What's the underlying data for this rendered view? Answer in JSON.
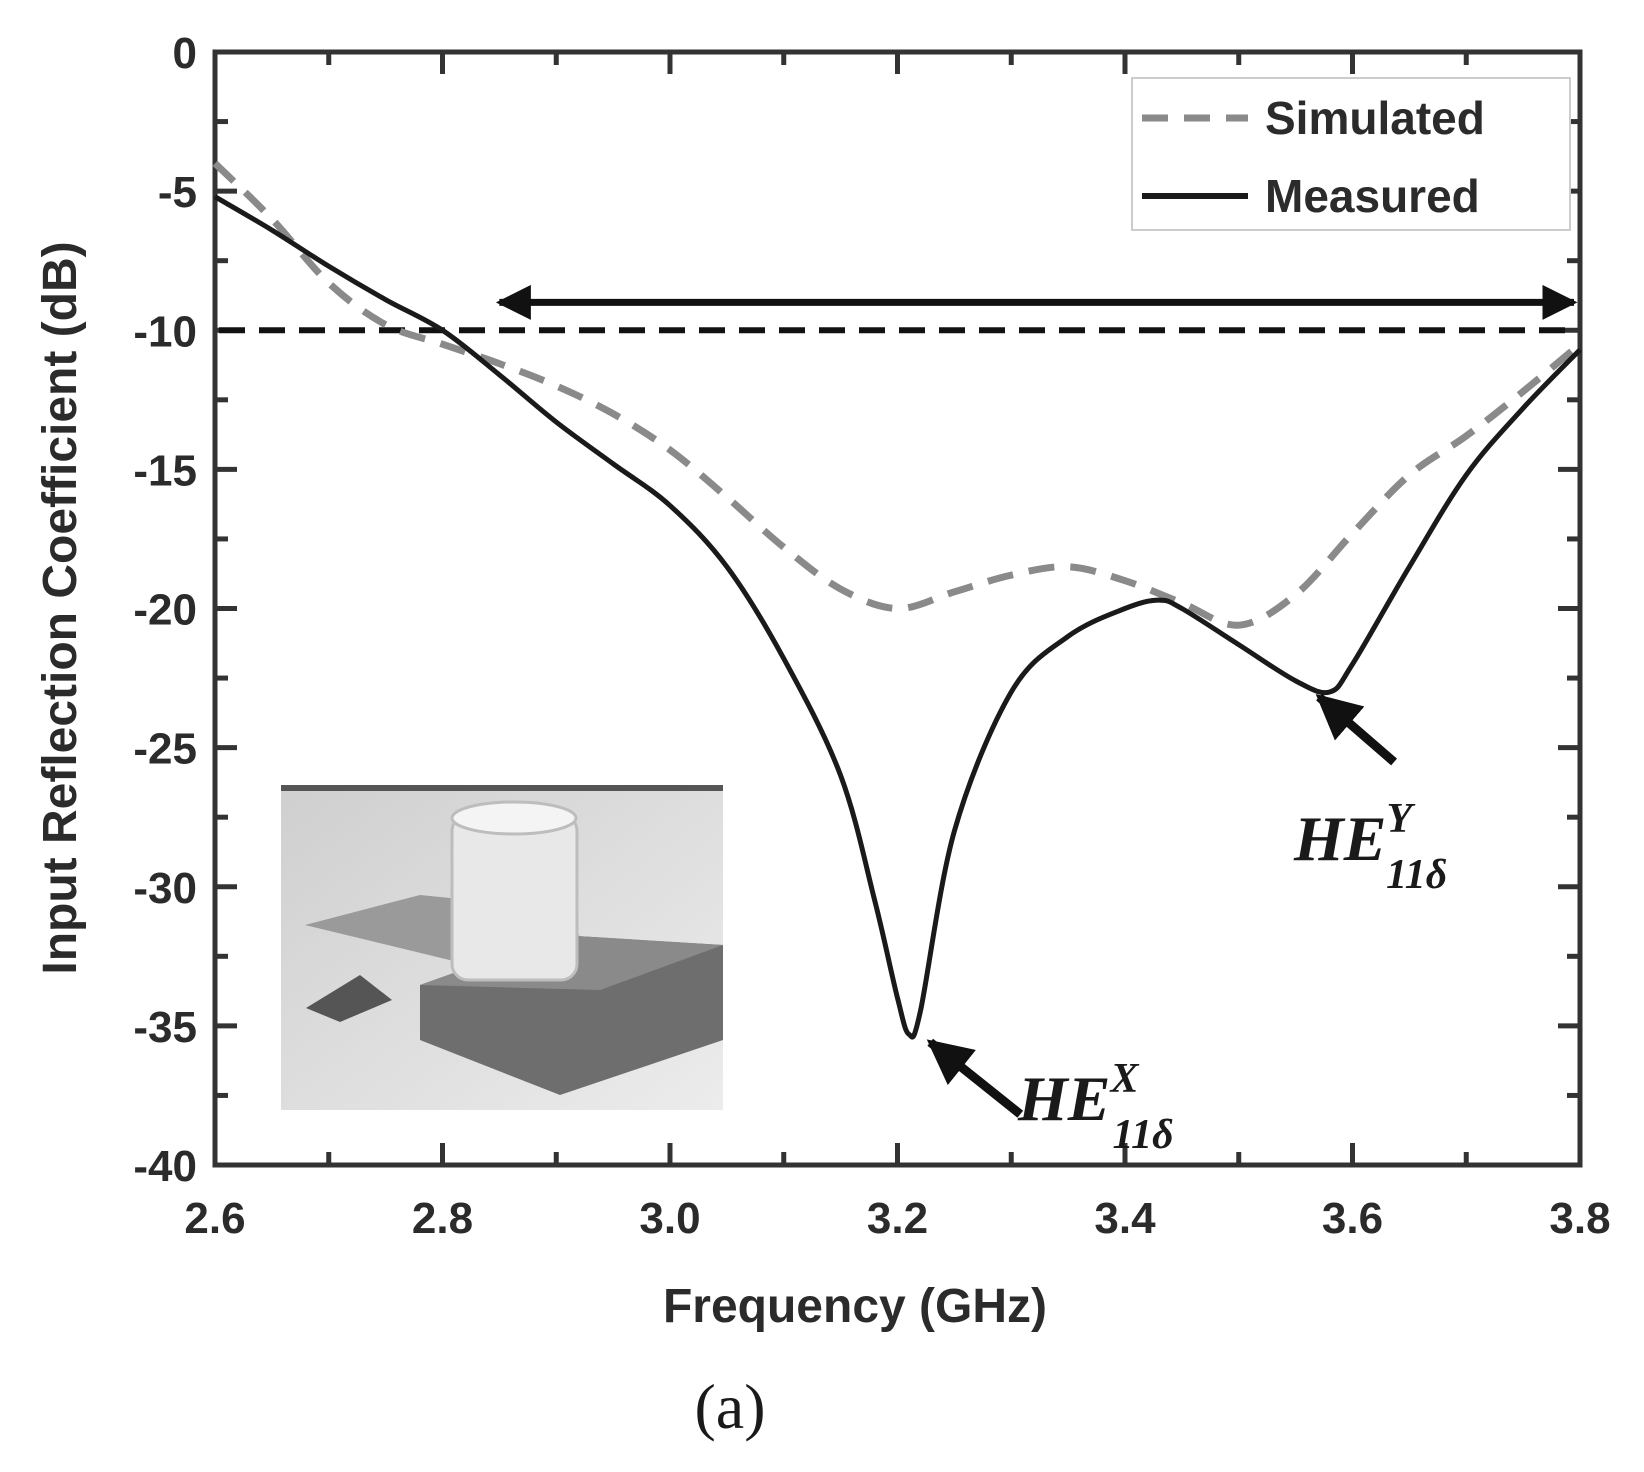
{
  "chart_data": {
    "type": "line",
    "xlabel": "Frequency (GHz)",
    "ylabel": "Input Reflection Coefficient (dB)",
    "xlim": [
      2.6,
      3.8
    ],
    "ylim": [
      -40,
      0
    ],
    "x_ticks": [
      "2.6",
      "2.8",
      "3.0",
      "3.2",
      "3.4",
      "3.6",
      "3.8"
    ],
    "y_ticks": [
      "0",
      "-5",
      "-10",
      "-15",
      "-20",
      "-25",
      "-30",
      "-35",
      "-40"
    ],
    "grid": false,
    "legend_position": "top-right",
    "reference_line": {
      "y": -10,
      "style": "dashed"
    },
    "bandwidth_arrow": {
      "x_start": 2.85,
      "x_end": 3.8,
      "y": -9
    },
    "series": [
      {
        "name": "Simulated",
        "style": "dashed",
        "color": "#8a8a8a",
        "x": [
          2.6,
          2.65,
          2.7,
          2.75,
          2.8,
          2.85,
          2.9,
          2.95,
          3.0,
          3.05,
          3.1,
          3.15,
          3.2,
          3.25,
          3.3,
          3.35,
          3.4,
          3.45,
          3.5,
          3.55,
          3.6,
          3.65,
          3.7,
          3.75,
          3.8
        ],
        "y": [
          -4.0,
          -6.0,
          -8.3,
          -9.8,
          -10.5,
          -11.2,
          -12.0,
          -13.0,
          -14.3,
          -16.0,
          -17.8,
          -19.3,
          -20.0,
          -19.4,
          -18.8,
          -18.5,
          -19.0,
          -19.8,
          -20.6,
          -19.5,
          -17.3,
          -15.2,
          -13.8,
          -12.2,
          -10.5
        ]
      },
      {
        "name": "Measured",
        "style": "solid",
        "color": "#1a1a1a",
        "x": [
          2.6,
          2.65,
          2.7,
          2.75,
          2.8,
          2.85,
          2.9,
          2.95,
          3.0,
          3.05,
          3.1,
          3.15,
          3.18,
          3.2,
          3.21,
          3.22,
          3.25,
          3.3,
          3.35,
          3.4,
          3.43,
          3.45,
          3.5,
          3.55,
          3.58,
          3.6,
          3.65,
          3.7,
          3.75,
          3.8
        ],
        "y": [
          -5.2,
          -6.4,
          -7.7,
          -8.9,
          -10.0,
          -11.6,
          -13.3,
          -14.8,
          -16.3,
          -18.5,
          -21.8,
          -26.0,
          -30.5,
          -34.0,
          -35.3,
          -34.5,
          -28.0,
          -23.0,
          -21.0,
          -20.0,
          -19.7,
          -20.0,
          -21.3,
          -22.6,
          -23.0,
          -22.0,
          -18.5,
          -15.2,
          -12.8,
          -10.7
        ]
      }
    ],
    "annotations": [
      {
        "base": "HE",
        "sup": "X",
        "sub": "11δ",
        "x": 3.22,
        "y": -35.3
      },
      {
        "base": "HE",
        "sup": "Y",
        "sub": "11δ",
        "x": 3.575,
        "y": -23.0
      }
    ],
    "inset": {
      "description_shown": false
    }
  },
  "panel_label": "(a)"
}
